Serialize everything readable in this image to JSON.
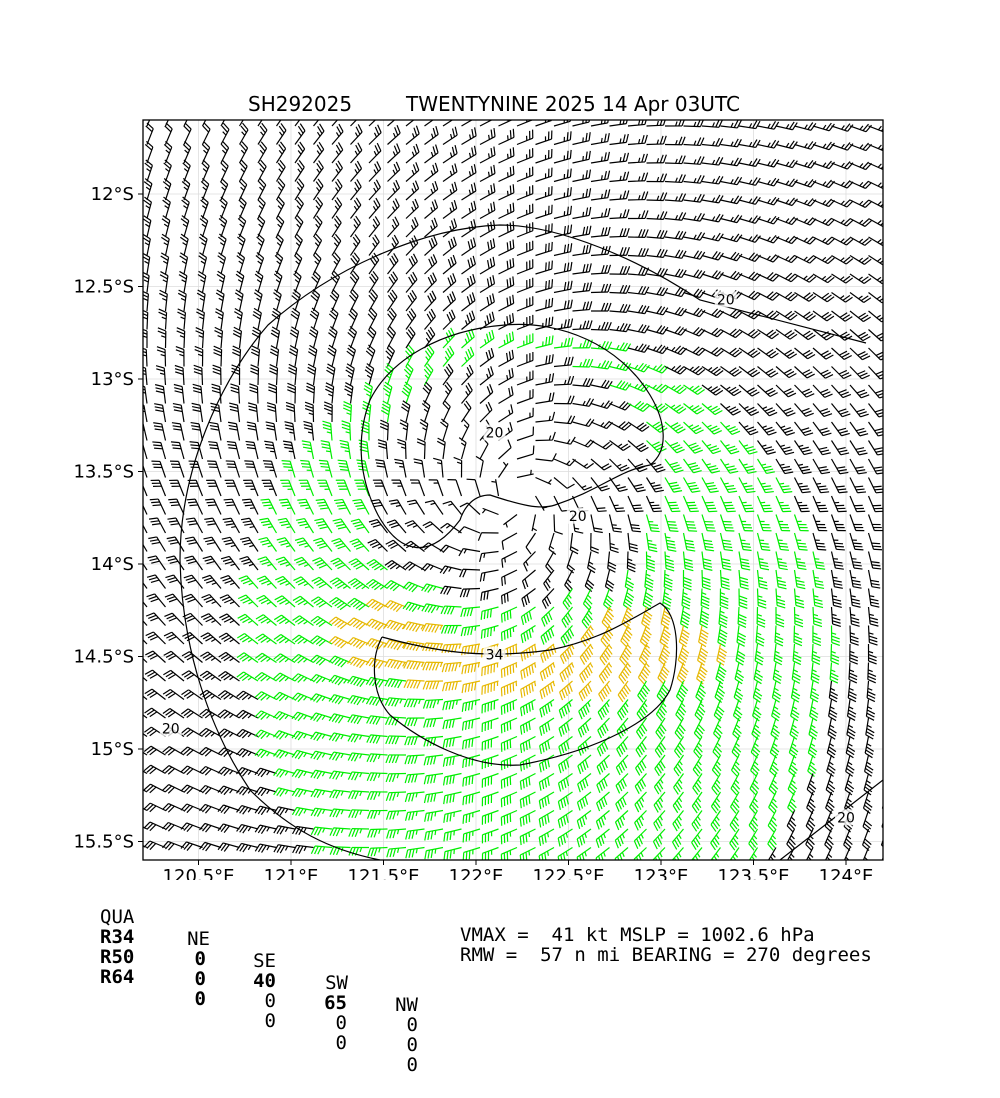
{
  "title": {
    "storm_id": "SH292025",
    "main": "TWENTYNINE 2025 14 Apr 03UTC"
  },
  "chart_data": {
    "type": "wind-barb-map",
    "x_ticks": [
      "120.5°E",
      "121°E",
      "121.5°E",
      "122°E",
      "122.5°E",
      "123°E",
      "123.5°E",
      "124°E"
    ],
    "x_tick_values": [
      120.5,
      121.0,
      121.5,
      122.0,
      122.5,
      123.0,
      123.5,
      124.0
    ],
    "y_ticks": [
      "12°S",
      "12.5°S",
      "13°S",
      "13.5°S",
      "14°S",
      "14.5°S",
      "15°S",
      "15.5°S"
    ],
    "y_tick_values": [
      -12.0,
      -12.5,
      -13.0,
      -13.5,
      -14.0,
      -14.5,
      -15.0,
      -15.5
    ],
    "xlim": [
      120.2,
      124.2
    ],
    "ylim": [
      -15.6,
      -11.6
    ],
    "grid": true,
    "center": {
      "lon": 122.2,
      "lat": -13.65
    },
    "contour_labels": [
      {
        "text": "20",
        "lon": 123.35,
        "lat": -12.58
      },
      {
        "text": "20",
        "lon": 122.1,
        "lat": -13.3
      },
      {
        "text": "20",
        "lon": 122.55,
        "lat": -13.75
      },
      {
        "text": "34",
        "lon": 122.1,
        "lat": -14.5
      },
      {
        "text": "20",
        "lon": 120.35,
        "lat": -14.9
      },
      {
        "text": "20",
        "lon": 124.0,
        "lat": -15.38
      }
    ],
    "barb_colors": {
      "below_34": "#000000",
      "34_to_50": "#00ee00",
      "above_50": "#e6b800"
    }
  },
  "quadrant_table": {
    "header": [
      "QUA",
      "NE",
      "SE",
      "SW",
      "NW"
    ],
    "rows": [
      {
        "label": "R34",
        "values": [
          "0",
          "40",
          "65",
          "0"
        ]
      },
      {
        "label": "R50",
        "values": [
          "0",
          "0",
          "0",
          "0"
        ]
      },
      {
        "label": "R64",
        "values": [
          "0",
          "0",
          "0",
          "0"
        ]
      }
    ]
  },
  "stats": {
    "line1": "VMAX =  41 kt MSLP = 1002.6 hPa",
    "line2": "RMW =  57 n mi BEARING = 270 degrees"
  }
}
